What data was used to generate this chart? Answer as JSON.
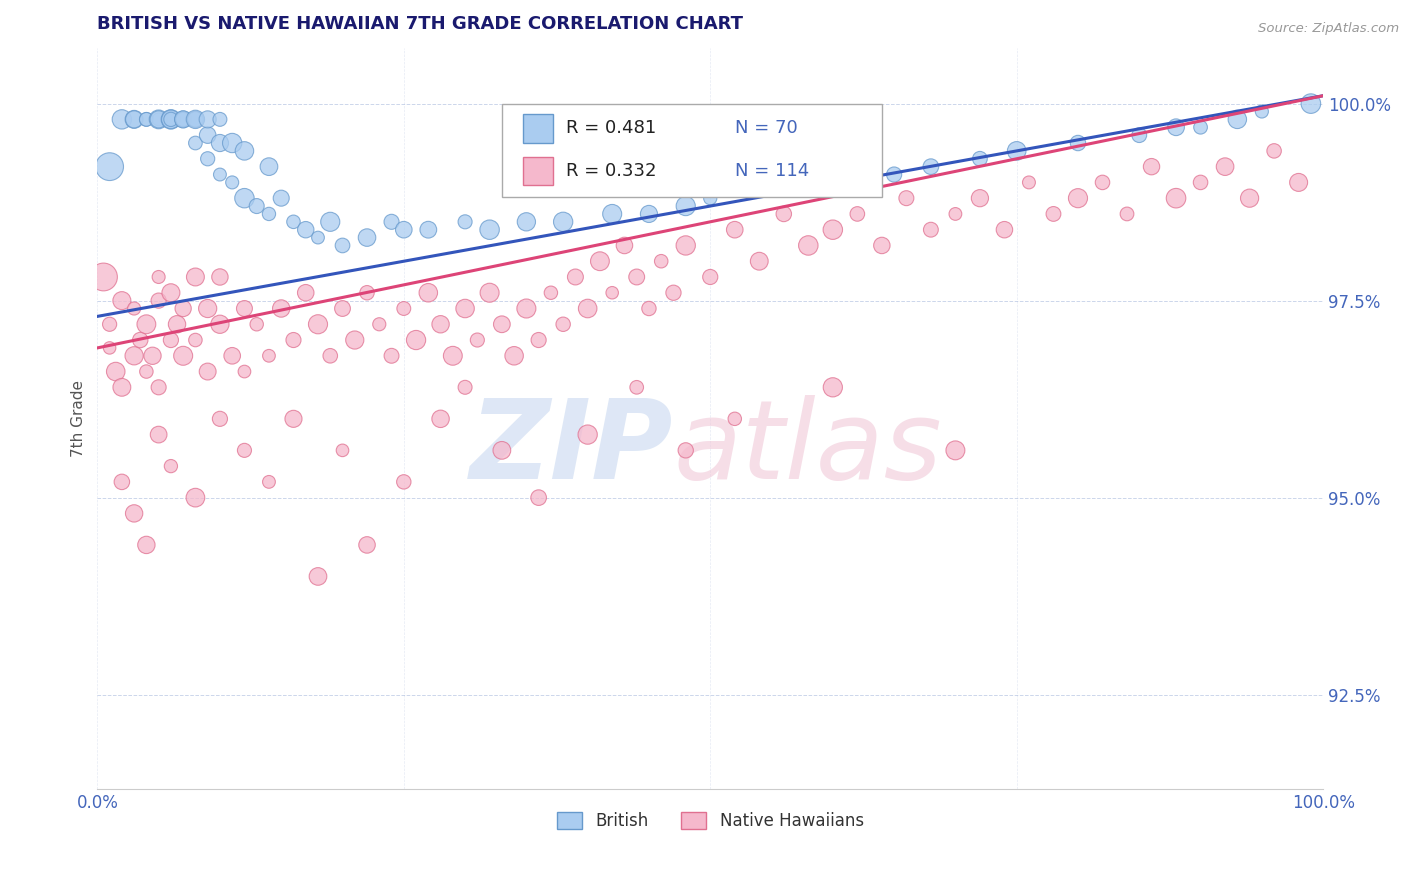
{
  "title": "BRITISH VS NATIVE HAWAIIAN 7TH GRADE CORRELATION CHART",
  "source": "Source: ZipAtlas.com",
  "ylabel": "7th Grade",
  "xlim": [
    0.0,
    1.0
  ],
  "ylim": [
    0.913,
    1.007
  ],
  "yticks": [
    0.925,
    0.95,
    0.975,
    1.0
  ],
  "ytick_labels": [
    "92.5%",
    "95.0%",
    "97.5%",
    "100.0%"
  ],
  "british_color": "#aaccf0",
  "hawaiian_color": "#f5b8cc",
  "british_edge": "#6699cc",
  "hawaiian_edge": "#e07090",
  "trend_british_color": "#3355bb",
  "trend_hawaiian_color": "#dd4477",
  "R_british": 0.481,
  "N_british": 70,
  "R_hawaiian": 0.332,
  "N_hawaiian": 114,
  "legend_label_british": "British",
  "legend_label_hawaiian": "Native Hawaiians",
  "title_color": "#1a1a6e",
  "tick_color": "#4466bb",
  "background_color": "#ffffff",
  "british_x": [
    0.01,
    0.02,
    0.03,
    0.03,
    0.04,
    0.04,
    0.05,
    0.05,
    0.05,
    0.06,
    0.06,
    0.06,
    0.06,
    0.06,
    0.07,
    0.07,
    0.07,
    0.07,
    0.07,
    0.07,
    0.07,
    0.08,
    0.08,
    0.08,
    0.08,
    0.08,
    0.09,
    0.09,
    0.09,
    0.1,
    0.1,
    0.1,
    0.11,
    0.11,
    0.12,
    0.12,
    0.13,
    0.14,
    0.14,
    0.15,
    0.16,
    0.17,
    0.18,
    0.19,
    0.2,
    0.22,
    0.24,
    0.25,
    0.27,
    0.3,
    0.32,
    0.35,
    0.38,
    0.42,
    0.45,
    0.48,
    0.5,
    0.55,
    0.6,
    0.65,
    0.68,
    0.72,
    0.75,
    0.8,
    0.85,
    0.88,
    0.9,
    0.93,
    0.95,
    0.99
  ],
  "british_y": [
    0.992,
    0.998,
    0.998,
    0.998,
    0.998,
    0.998,
    0.998,
    0.998,
    0.998,
    0.998,
    0.998,
    0.998,
    0.998,
    0.998,
    0.998,
    0.998,
    0.998,
    0.998,
    0.998,
    0.998,
    0.998,
    0.995,
    0.998,
    0.998,
    0.998,
    0.998,
    0.993,
    0.996,
    0.998,
    0.991,
    0.995,
    0.998,
    0.99,
    0.995,
    0.988,
    0.994,
    0.987,
    0.986,
    0.992,
    0.988,
    0.985,
    0.984,
    0.983,
    0.985,
    0.982,
    0.983,
    0.985,
    0.984,
    0.984,
    0.985,
    0.984,
    0.985,
    0.985,
    0.986,
    0.986,
    0.987,
    0.988,
    0.989,
    0.99,
    0.991,
    0.992,
    0.993,
    0.994,
    0.995,
    0.996,
    0.997,
    0.997,
    0.998,
    0.999,
    1.0
  ],
  "hawaiian_x": [
    0.005,
    0.01,
    0.01,
    0.015,
    0.02,
    0.02,
    0.03,
    0.03,
    0.035,
    0.04,
    0.04,
    0.045,
    0.05,
    0.05,
    0.05,
    0.06,
    0.06,
    0.065,
    0.07,
    0.07,
    0.08,
    0.08,
    0.09,
    0.09,
    0.1,
    0.1,
    0.11,
    0.12,
    0.12,
    0.13,
    0.14,
    0.15,
    0.16,
    0.17,
    0.18,
    0.19,
    0.2,
    0.21,
    0.22,
    0.23,
    0.24,
    0.25,
    0.26,
    0.27,
    0.28,
    0.29,
    0.3,
    0.31,
    0.32,
    0.33,
    0.34,
    0.35,
    0.36,
    0.37,
    0.38,
    0.39,
    0.4,
    0.41,
    0.42,
    0.43,
    0.44,
    0.45,
    0.46,
    0.47,
    0.48,
    0.5,
    0.52,
    0.54,
    0.56,
    0.58,
    0.6,
    0.62,
    0.64,
    0.66,
    0.68,
    0.7,
    0.72,
    0.74,
    0.76,
    0.78,
    0.8,
    0.82,
    0.84,
    0.86,
    0.88,
    0.9,
    0.92,
    0.94,
    0.96,
    0.98,
    0.02,
    0.03,
    0.04,
    0.05,
    0.06,
    0.08,
    0.1,
    0.12,
    0.14,
    0.16,
    0.18,
    0.2,
    0.22,
    0.25,
    0.28,
    0.3,
    0.33,
    0.36,
    0.4,
    0.44,
    0.48,
    0.52,
    0.6,
    0.7
  ],
  "hawaiian_y": [
    0.978,
    0.972,
    0.969,
    0.966,
    0.964,
    0.975,
    0.968,
    0.974,
    0.97,
    0.966,
    0.972,
    0.968,
    0.975,
    0.978,
    0.964,
    0.97,
    0.976,
    0.972,
    0.968,
    0.974,
    0.97,
    0.978,
    0.974,
    0.966,
    0.972,
    0.978,
    0.968,
    0.974,
    0.966,
    0.972,
    0.968,
    0.974,
    0.97,
    0.976,
    0.972,
    0.968,
    0.974,
    0.97,
    0.976,
    0.972,
    0.968,
    0.974,
    0.97,
    0.976,
    0.972,
    0.968,
    0.974,
    0.97,
    0.976,
    0.972,
    0.968,
    0.974,
    0.97,
    0.976,
    0.972,
    0.978,
    0.974,
    0.98,
    0.976,
    0.982,
    0.978,
    0.974,
    0.98,
    0.976,
    0.982,
    0.978,
    0.984,
    0.98,
    0.986,
    0.982,
    0.984,
    0.986,
    0.982,
    0.988,
    0.984,
    0.986,
    0.988,
    0.984,
    0.99,
    0.986,
    0.988,
    0.99,
    0.986,
    0.992,
    0.988,
    0.99,
    0.992,
    0.988,
    0.994,
    0.99,
    0.952,
    0.948,
    0.944,
    0.958,
    0.954,
    0.95,
    0.96,
    0.956,
    0.952,
    0.96,
    0.94,
    0.956,
    0.944,
    0.952,
    0.96,
    0.964,
    0.956,
    0.95,
    0.958,
    0.964,
    0.956,
    0.96,
    0.964,
    0.956
  ]
}
